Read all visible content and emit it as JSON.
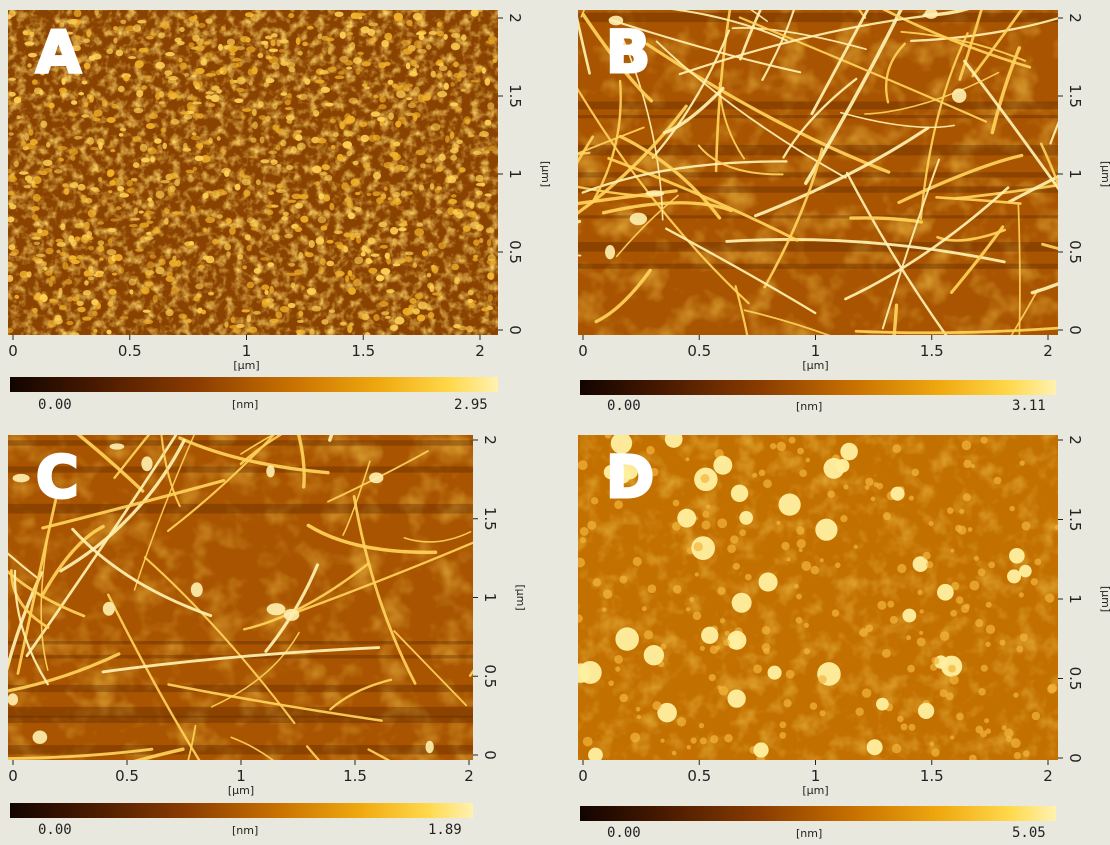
{
  "panels": [
    {
      "id": "A",
      "label": "A",
      "style": "granular",
      "x_ticks": [
        "0",
        "0.5",
        "1",
        "1.5",
        "2"
      ],
      "y_ticks": [
        "0",
        "0.5",
        "1",
        "1.5",
        "2"
      ],
      "x_unit": "[µm]",
      "y_unit": "[µm]",
      "colorbar": {
        "min": "0.00",
        "max": "2.95",
        "unit": "[nm]"
      }
    },
    {
      "id": "B",
      "label": "B",
      "style": "fibrils-dense",
      "x_ticks": [
        "0",
        "0.5",
        "1",
        "1.5",
        "2"
      ],
      "y_ticks": [
        "0",
        "0.5",
        "1",
        "1.5",
        "2"
      ],
      "x_unit": "[µm]",
      "y_unit": "[µm]",
      "colorbar": {
        "min": "0.00",
        "max": "3.11",
        "unit": "[nm]"
      }
    },
    {
      "id": "C",
      "label": "C",
      "style": "fibrils-sparse",
      "x_ticks": [
        "0",
        "0.5",
        "1",
        "1.5",
        "2"
      ],
      "y_ticks": [
        "0",
        "0.5",
        "1",
        "1.5",
        "2"
      ],
      "x_unit": "[µm]",
      "y_unit": "[µm]",
      "colorbar": {
        "min": "0.00",
        "max": "1.89",
        "unit": "[nm]"
      }
    },
    {
      "id": "D",
      "label": "D",
      "style": "particles",
      "x_ticks": [
        "0",
        "0.5",
        "1",
        "1.5",
        "2"
      ],
      "y_ticks": [
        "0",
        "0.5",
        "1",
        "1.5",
        "2"
      ],
      "x_unit": "[µm]",
      "y_unit": "[µm]",
      "colorbar": {
        "min": "0.00",
        "max": "5.05",
        "unit": "[nm]"
      }
    }
  ],
  "colors": {
    "background": "#e9e8de",
    "afm_dark": "#3a1600",
    "afm_mid": "#b35f00",
    "afm_bright": "#ffe07a"
  }
}
